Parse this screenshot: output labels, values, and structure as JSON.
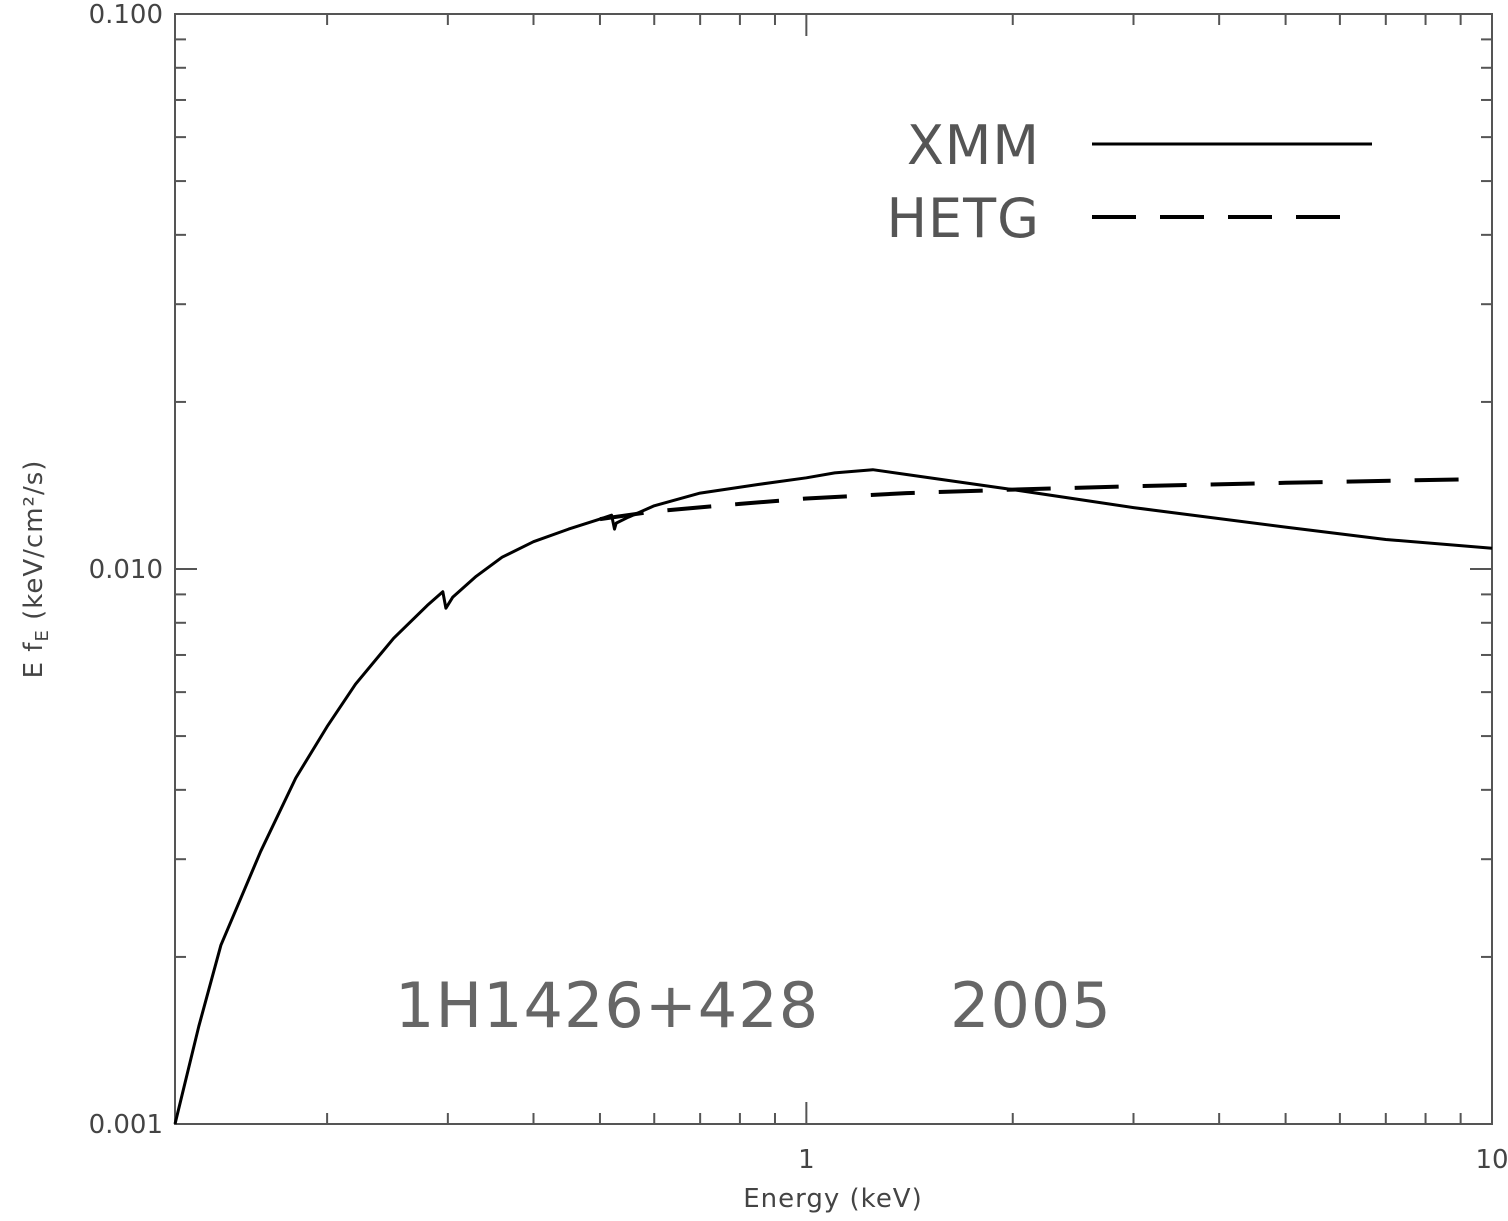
{
  "chart_data": {
    "type": "line",
    "xlabel": "Energy (keV)",
    "ylabel": "E f",
    "ylabel_sub": "E",
    "ylabel_unit": " (keV/cm²/s)",
    "x_scale": "log",
    "y_scale": "log",
    "xlim": [
      0.12,
      10
    ],
    "ylim": [
      0.001,
      0.1
    ],
    "x_ticks": [
      {
        "value": 1,
        "label": "1"
      },
      {
        "value": 10,
        "label": "10"
      }
    ],
    "y_ticks": [
      {
        "value": 0.001,
        "label": "0.001"
      },
      {
        "value": 0.01,
        "label": "0.010"
      },
      {
        "value": 0.1,
        "label": "0.100"
      }
    ],
    "grid": false,
    "legend_position": "top-right",
    "series": [
      {
        "name": "XMM",
        "style": "solid",
        "color": "#000000",
        "x": [
          0.12,
          0.13,
          0.14,
          0.16,
          0.18,
          0.2,
          0.22,
          0.25,
          0.28,
          0.295,
          0.298,
          0.305,
          0.33,
          0.36,
          0.4,
          0.45,
          0.5,
          0.52,
          0.525,
          0.528,
          0.55,
          0.6,
          0.7,
          0.85,
          1.0,
          1.1,
          1.25,
          1.4,
          2.0,
          3.0,
          5.0,
          7.0,
          10.0
        ],
        "y": [
          0.001,
          0.0015,
          0.0021,
          0.0031,
          0.0042,
          0.0052,
          0.0062,
          0.0075,
          0.0086,
          0.0091,
          0.0085,
          0.0089,
          0.0097,
          0.0105,
          0.0112,
          0.0118,
          0.0123,
          0.0125,
          0.0118,
          0.0121,
          0.0124,
          0.013,
          0.0137,
          0.0142,
          0.0146,
          0.0149,
          0.0151,
          0.0148,
          0.0139,
          0.0129,
          0.0119,
          0.0113,
          0.0109
        ]
      },
      {
        "name": "HETG",
        "style": "dashed",
        "color": "#000000",
        "x": [
          0.5,
          0.6,
          0.8,
          1.0,
          1.4,
          2.0,
          3.0,
          5.0,
          9.0
        ],
        "y": [
          0.0123,
          0.0127,
          0.0131,
          0.0134,
          0.0137,
          0.0139,
          0.0141,
          0.0143,
          0.0145
        ]
      }
    ],
    "annotations": [
      {
        "text": "1H1426+428"
      },
      {
        "text": "2005"
      }
    ]
  }
}
